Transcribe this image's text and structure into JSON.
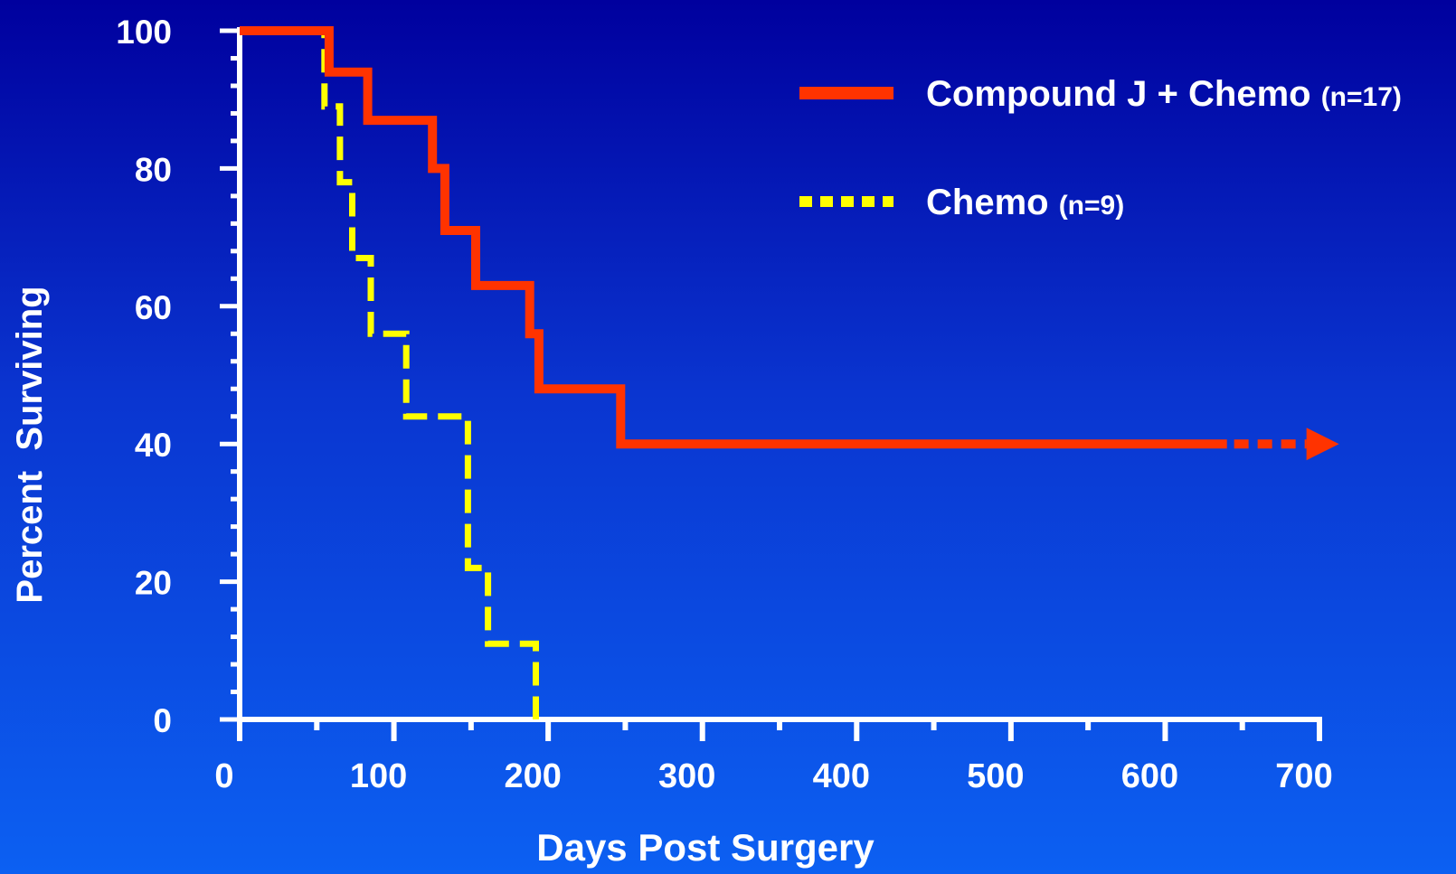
{
  "chart_data": {
    "type": "line",
    "title": "",
    "xlabel": "Days Post Surgery",
    "ylabel": "Percent  Surviving",
    "xlim": [
      0,
      700
    ],
    "ylim": [
      0,
      100
    ],
    "x_ticks": [
      "0",
      "100",
      "200",
      "300",
      "400",
      "500",
      "600",
      "700"
    ],
    "y_ticks": [
      "0",
      "20",
      "40",
      "60",
      "80",
      "100"
    ],
    "grid": false,
    "legend_position": "top-right",
    "background": "#0a3fd6",
    "series": [
      {
        "name": "Compound J + Chemo",
        "n_label": "(n=17)",
        "color": "#ff3300",
        "style": "solid",
        "continues_beyond_data": true,
        "points": [
          [
            0,
            100
          ],
          [
            58,
            100
          ],
          [
            58,
            94
          ],
          [
            83,
            94
          ],
          [
            83,
            87
          ],
          [
            125,
            87
          ],
          [
            125,
            80
          ],
          [
            133,
            80
          ],
          [
            133,
            71
          ],
          [
            153,
            71
          ],
          [
            153,
            63
          ],
          [
            188,
            63
          ],
          [
            188,
            56
          ],
          [
            194,
            56
          ],
          [
            194,
            48
          ],
          [
            247,
            48
          ],
          [
            247,
            40
          ],
          [
            640,
            40
          ]
        ]
      },
      {
        "name": "Chemo",
        "n_label": "(n=9)",
        "color": "#ffff00",
        "style": "dashed",
        "continues_beyond_data": false,
        "points": [
          [
            0,
            100
          ],
          [
            55,
            100
          ],
          [
            55,
            89
          ],
          [
            65,
            89
          ],
          [
            65,
            78
          ],
          [
            73,
            78
          ],
          [
            73,
            67
          ],
          [
            85,
            67
          ],
          [
            85,
            56
          ],
          [
            108,
            56
          ],
          [
            108,
            44
          ],
          [
            148,
            44
          ],
          [
            148,
            22
          ],
          [
            161,
            22
          ],
          [
            161,
            11
          ],
          [
            192,
            11
          ],
          [
            192,
            0
          ]
        ]
      }
    ]
  }
}
